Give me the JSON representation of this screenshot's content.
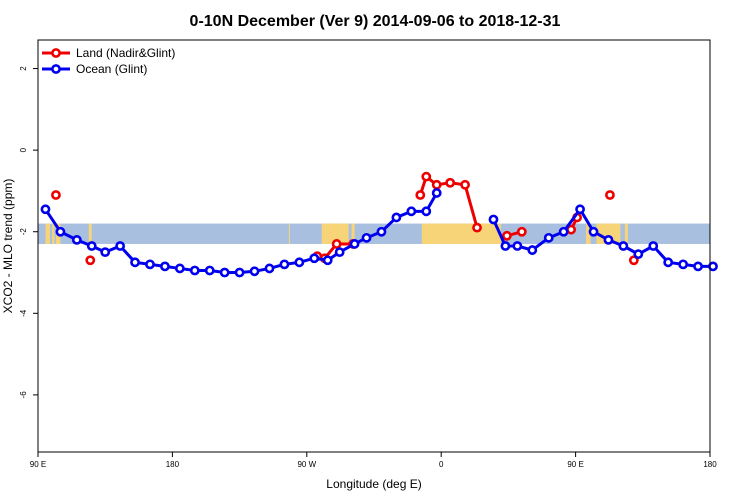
{
  "chart_data": {
    "type": "line",
    "title": "0-10N December (Ver 9)   2014-09-06 to 2018-12-31",
    "xlabel": "Longitude (deg E)",
    "ylabel": "XCO2 - MLO trend (ppm)",
    "xlim": [
      90,
      540
    ],
    "ylim": [
      -7.4,
      2.7
    ],
    "x_ticks": [
      {
        "value": 90,
        "label": "90 E"
      },
      {
        "value": 180,
        "label": "180"
      },
      {
        "value": 270,
        "label": "90 W"
      },
      {
        "value": 360,
        "label": "0"
      },
      {
        "value": 450,
        "label": "90 E"
      },
      {
        "value": 540,
        "label": "180"
      }
    ],
    "y_ticks": [
      {
        "value": 2,
        "label": "2"
      },
      {
        "value": 0,
        "label": "0"
      },
      {
        "value": -2,
        "label": "-2"
      },
      {
        "value": -4,
        "label": "-4"
      },
      {
        "value": -6,
        "label": "-6"
      }
    ],
    "legend": {
      "placement": "top-left",
      "entries": [
        {
          "label": "Land (Nadir&Glint)",
          "color": "#ee0000"
        },
        {
          "label": "Ocean (Glint)",
          "color": "#0000ee"
        }
      ]
    },
    "background_map": {
      "lat_range_ppm": [
        -2.3,
        -1.8
      ],
      "ocean_color": "#a8bfe0",
      "land_color": "#f8d478",
      "land_lon_spans": [
        [
          95,
          98
        ],
        [
          99.5,
          101
        ],
        [
          102,
          105
        ],
        [
          124,
          126
        ],
        [
          258,
          258.6
        ],
        [
          280,
          298
        ],
        [
          300,
          302
        ],
        [
          347,
          400
        ],
        [
          457,
          460
        ],
        [
          464,
          480
        ],
        [
          483,
          485
        ]
      ]
    },
    "series": [
      {
        "name": "Land (Nadir&Glint)",
        "color": "#ee0000",
        "x": [
          102,
          125,
          277,
          282,
          290,
          301,
          346,
          350,
          357,
          366,
          376,
          384,
          404,
          414,
          447,
          451,
          473,
          489
        ],
        "y": [
          -1.1,
          -2.7,
          -2.6,
          -2.65,
          -2.3,
          -2.3,
          -1.1,
          -0.65,
          -0.85,
          -0.8,
          -0.85,
          -1.9,
          -2.1,
          -2.0,
          -1.95,
          -1.65,
          -1.1,
          -2.7
        ]
      },
      {
        "name": "Ocean (Glint)",
        "color": "#0000ee",
        "x": [
          95,
          105,
          116,
          126,
          135,
          145,
          155,
          165,
          175,
          185,
          195,
          205,
          215,
          225,
          235,
          245,
          255,
          265,
          275,
          284,
          292,
          302,
          310,
          320,
          330,
          340,
          350,
          357,
          395,
          403,
          411,
          421,
          432,
          442,
          453,
          462,
          472,
          482,
          492,
          502,
          512,
          522,
          532,
          542
        ],
        "y": [
          -1.45,
          -2.0,
          -2.2,
          -2.35,
          -2.5,
          -2.35,
          -2.75,
          -2.8,
          -2.85,
          -2.9,
          -2.95,
          -2.95,
          -3.0,
          -3.0,
          -2.97,
          -2.9,
          -2.8,
          -2.75,
          -2.65,
          -2.7,
          -2.5,
          -2.3,
          -2.15,
          -2.0,
          -1.65,
          -1.5,
          -1.5,
          -1.05,
          -1.7,
          -2.35,
          -2.35,
          -2.45,
          -2.15,
          -2.0,
          -1.45,
          -2.0,
          -2.2,
          -2.35,
          -2.55,
          -2.35,
          -2.75,
          -2.8,
          -2.85,
          -2.85
        ]
      }
    ]
  }
}
